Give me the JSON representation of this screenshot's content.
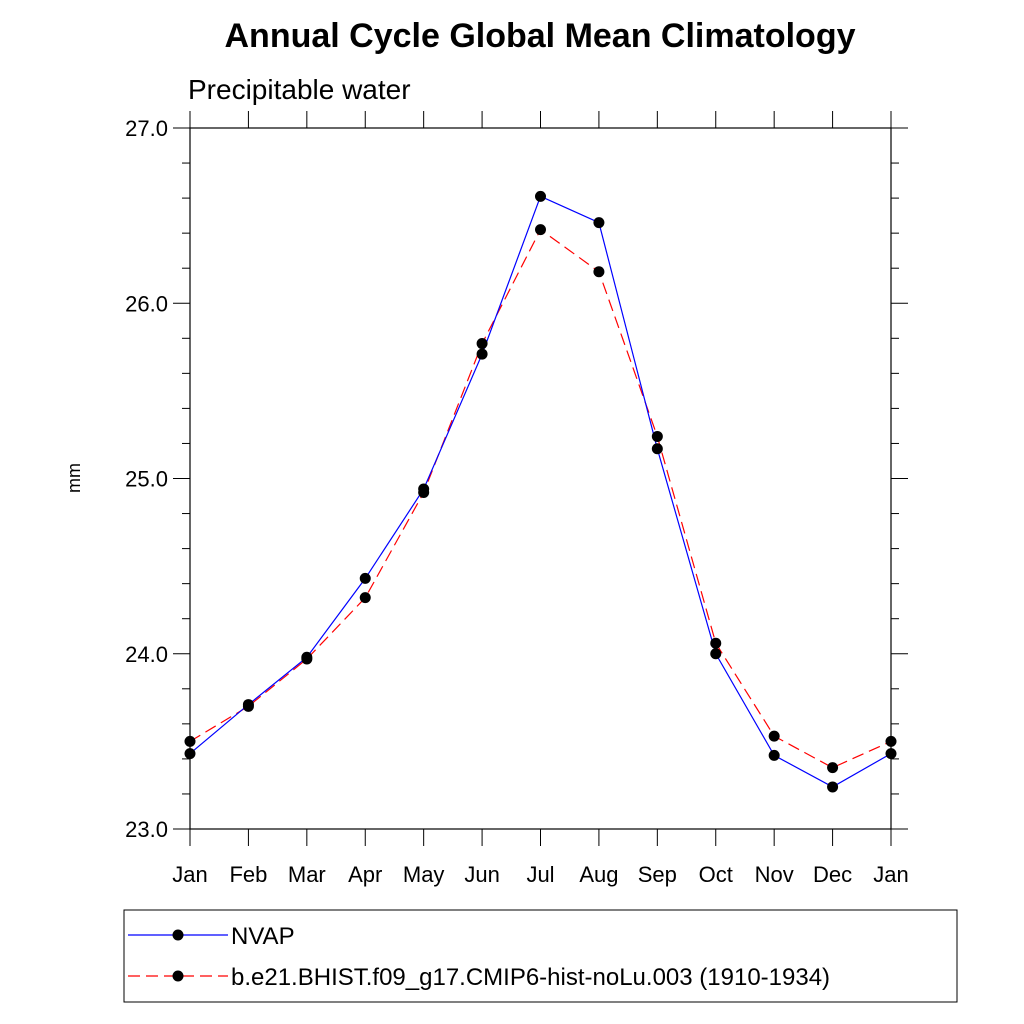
{
  "chart_data": {
    "type": "line",
    "title": "Annual Cycle Global Mean Climatology",
    "subtitle": "Precipitable water",
    "xlabel": "",
    "ylabel": "mm",
    "categories": [
      "Jan",
      "Feb",
      "Mar",
      "Apr",
      "May",
      "Jun",
      "Jul",
      "Aug",
      "Sep",
      "Oct",
      "Nov",
      "Dec",
      "Jan"
    ],
    "ylim": [
      23.0,
      27.0
    ],
    "yticks": [
      "23.0",
      "24.0",
      "25.0",
      "26.0",
      "27.0"
    ],
    "legend_position": "bottom",
    "series": [
      {
        "name": "NVAP",
        "color": "#0000ff",
        "dash": "solid",
        "values": [
          23.43,
          23.71,
          23.98,
          24.43,
          24.94,
          25.71,
          26.61,
          26.46,
          25.17,
          24.0,
          23.42,
          23.24,
          23.43
        ]
      },
      {
        "name": "b.e21.BHIST.f09_g17.CMIP6-hist-noLu.003 (1910-1934)",
        "color": "#ff0000",
        "dash": "dashed",
        "values": [
          23.5,
          23.7,
          23.97,
          24.32,
          24.92,
          25.77,
          26.42,
          26.18,
          25.24,
          24.06,
          23.53,
          23.35,
          23.5
        ]
      }
    ]
  }
}
